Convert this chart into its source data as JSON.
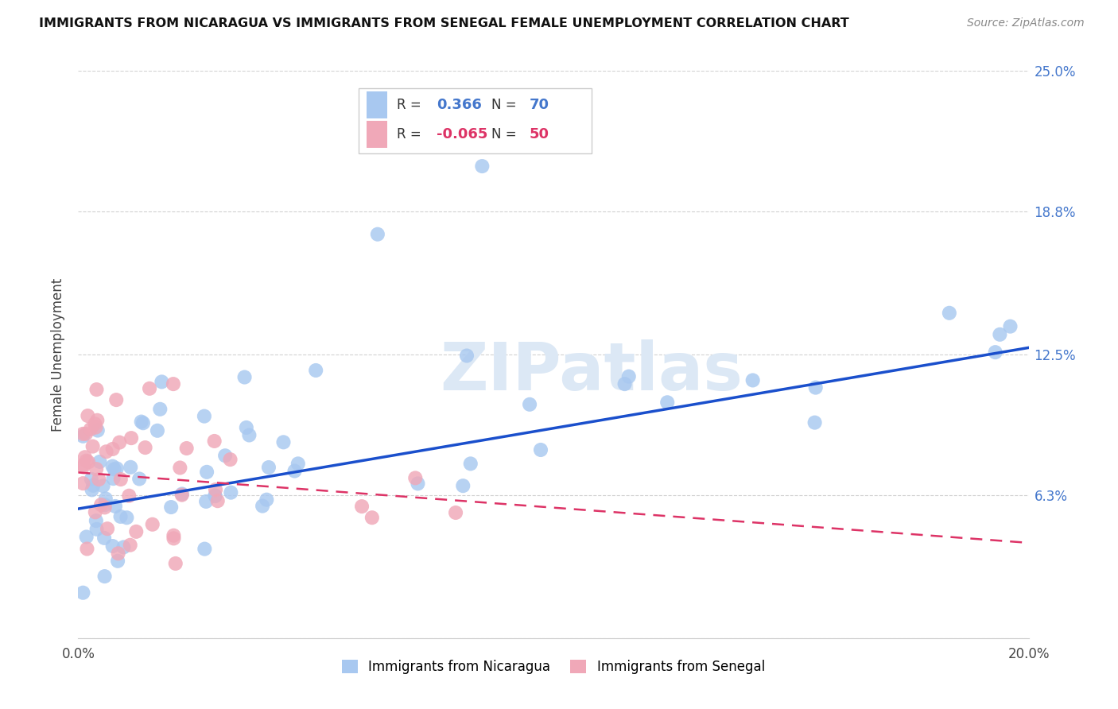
{
  "title": "IMMIGRANTS FROM NICARAGUA VS IMMIGRANTS FROM SENEGAL FEMALE UNEMPLOYMENT CORRELATION CHART",
  "source": "Source: ZipAtlas.com",
  "ylabel": "Female Unemployment",
  "xlim": [
    0.0,
    0.2
  ],
  "ylim": [
    0.0,
    0.25
  ],
  "ytick_values": [
    0.063,
    0.125,
    0.188,
    0.25
  ],
  "ytick_labels": [
    "6.3%",
    "12.5%",
    "18.8%",
    "25.0%"
  ],
  "xtick_values": [
    0.0,
    0.04,
    0.08,
    0.12,
    0.16,
    0.2
  ],
  "xtick_labels": [
    "0.0%",
    "",
    "",
    "",
    "",
    "20.0%"
  ],
  "nicaragua_R": 0.366,
  "nicaragua_N": 70,
  "senegal_R": -0.065,
  "senegal_N": 50,
  "nicaragua_color": "#a8c8f0",
  "senegal_color": "#f0a8b8",
  "nicaragua_line_color": "#1a4fcc",
  "senegal_line_color": "#dd3366",
  "watermark_color": "#dce8f5",
  "background_color": "#ffffff",
  "nicaragua_line_x": [
    0.0,
    0.2
  ],
  "nicaragua_line_y": [
    0.057,
    0.128
  ],
  "senegal_line_x": [
    0.0,
    0.2
  ],
  "senegal_line_y": [
    0.073,
    0.042
  ]
}
